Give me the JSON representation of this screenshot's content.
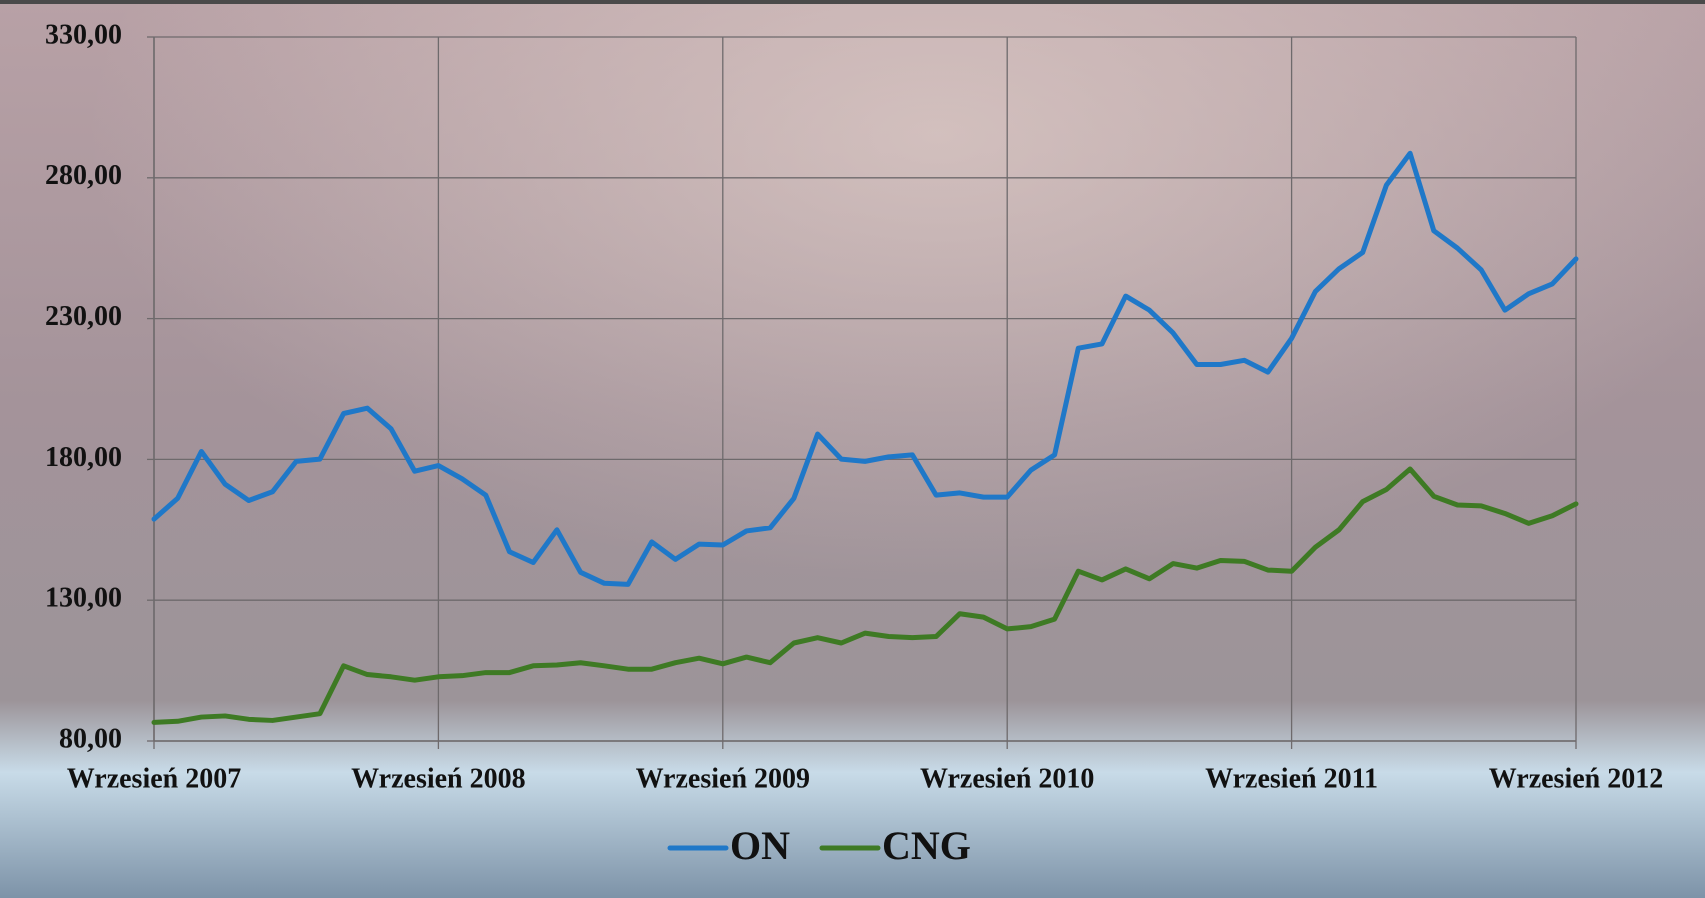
{
  "chart_data": {
    "type": "line",
    "categories": [
      "Wrzesień 2007",
      null,
      null,
      null,
      null,
      null,
      null,
      null,
      null,
      null,
      null,
      null,
      "Wrzesień 2008",
      null,
      null,
      null,
      null,
      null,
      null,
      null,
      null,
      null,
      null,
      null,
      "Wrzesień 2009",
      null,
      null,
      null,
      null,
      null,
      null,
      null,
      null,
      null,
      null,
      null,
      "Wrzesień 2010",
      null,
      null,
      null,
      null,
      null,
      null,
      null,
      null,
      null,
      null,
      null,
      "Wrzesień 2011",
      null,
      null,
      null,
      null,
      null,
      null,
      null,
      null,
      null,
      null,
      null,
      "Wrzesień 2012"
    ],
    "series": [
      {
        "name": "ON",
        "color": "#1f78c8",
        "values": [
          158.8,
          166.2,
          182.8,
          171.2,
          165.4,
          168.5,
          179.3,
          180.1,
          196.3,
          198.2,
          190.9,
          175.8,
          177.8,
          173.1,
          167.3,
          147.2,
          143.4,
          155.0,
          139.9,
          136.0,
          135.6,
          150.7,
          144.5,
          149.9,
          149.6,
          154.6,
          155.7,
          166.2,
          189.0,
          180.1,
          179.3,
          180.9,
          181.6,
          167.3,
          168.1,
          166.6,
          166.6,
          176.2,
          181.6,
          219.5,
          221.0,
          238.0,
          233.0,
          224.9,
          213.7,
          213.7,
          215.2,
          211.0,
          223.0,
          239.6,
          247.7,
          253.5,
          277.4,
          288.7,
          261.2,
          255.0,
          247.3,
          233.0,
          238.8,
          242.3,
          251.2
        ]
      },
      {
        "name": "CNG",
        "color": "#3e7a24",
        "values": [
          86.6,
          87.0,
          88.5,
          88.9,
          87.7,
          87.3,
          88.5,
          89.7,
          106.7,
          103.6,
          102.8,
          101.6,
          102.8,
          103.2,
          104.3,
          104.3,
          106.7,
          107.0,
          107.8,
          106.7,
          105.5,
          105.5,
          107.8,
          109.4,
          107.4,
          109.8,
          107.8,
          114.8,
          116.7,
          114.8,
          118.3,
          117.1,
          116.7,
          117.1,
          125.2,
          124.0,
          119.8,
          120.6,
          123.3,
          140.3,
          137.2,
          141.1,
          137.6,
          143.0,
          141.4,
          144.1,
          143.8,
          140.7,
          140.3,
          148.8,
          155.0,
          165.0,
          169.3,
          176.6,
          166.9,
          163.8,
          163.5,
          160.8,
          157.3,
          160.0,
          164.2
        ]
      }
    ],
    "ylim": [
      80,
      330
    ],
    "yticks": [
      {
        "value": 80,
        "label": "80,00"
      },
      {
        "value": 130,
        "label": "130,00"
      },
      {
        "value": 180,
        "label": "180,00"
      },
      {
        "value": 230,
        "label": "230,00"
      },
      {
        "value": 280,
        "label": "280,00"
      },
      {
        "value": 330,
        "label": "330,00"
      }
    ],
    "grid": true,
    "legend": "bottom"
  }
}
